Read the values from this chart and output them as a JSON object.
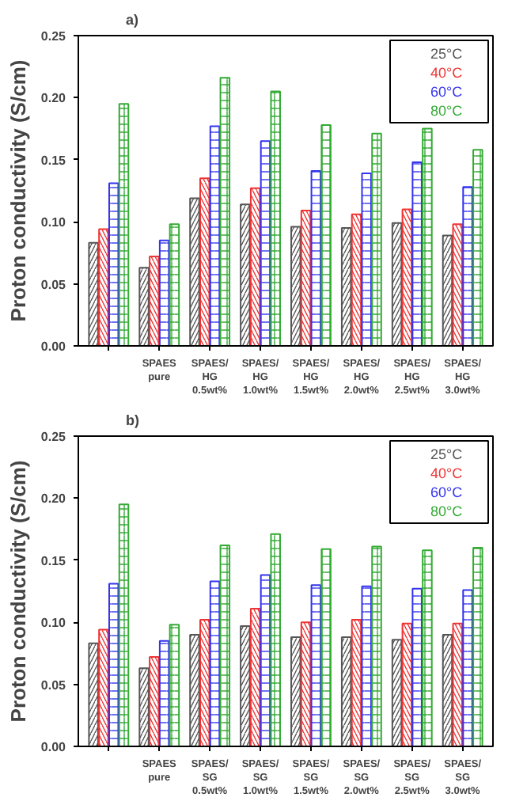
{
  "chart_data": [
    {
      "type": "bar",
      "title": "a)",
      "ylabel": "Proton conductivity (S/cm)",
      "categories": [
        null,
        "SPAES\npure",
        "SPAES/\nHG\n0.5wt%",
        "SPAES/\nHG\n1.0wt%",
        "SPAES/\nHG\n1.5wt%",
        "SPAES/\nHG\n2.0wt%",
        "SPAES/\nHG\n2.5wt%",
        "SPAES/\nHG\n3.0wt%"
      ],
      "ylim": [
        0,
        0.25
      ],
      "yticks": [
        {
          "value": 0,
          "label": "0.00"
        },
        {
          "value": 0.05,
          "label": "0.05"
        },
        {
          "value": 0.1,
          "label": "0.10"
        },
        {
          "value": 0.15,
          "label": "0.15"
        },
        {
          "value": 0.2,
          "label": "0.20"
        },
        {
          "value": 0.25,
          "label": "0.25"
        }
      ],
      "legend": "top right",
      "grid": false,
      "series": [
        {
          "name": "25°C",
          "color": "#555555",
          "values": [
            0.083,
            0.063,
            0.119,
            0.114,
            0.096,
            0.095,
            0.099,
            0.089
          ]
        },
        {
          "name": "40°C",
          "color": "#ee3333",
          "values": [
            0.094,
            0.072,
            0.135,
            0.127,
            0.109,
            0.106,
            0.11,
            0.098
          ]
        },
        {
          "name": "60°C",
          "color": "#3333ee",
          "values": [
            0.131,
            0.085,
            0.177,
            0.165,
            0.141,
            0.139,
            0.148,
            0.128
          ]
        },
        {
          "name": "80°C",
          "color": "#33aa33",
          "values": [
            0.195,
            0.098,
            0.216,
            0.205,
            0.178,
            0.171,
            0.175,
            0.158
          ]
        }
      ]
    },
    {
      "type": "bar",
      "title": "b)",
      "ylabel": "Proton conductivity (S/cm)",
      "categories": [
        null,
        "SPAES\npure",
        "SPAES/\nSG\n0.5wt%",
        "SPAES/\nSG\n1.0wt%",
        "SPAES/\nSG\n1.5wt%",
        "SPAES/\nSG\n2.0wt%",
        "SPAES/\nSG\n2.5wt%",
        "SPAES/\nSG\n3.0wt%"
      ],
      "ylim": [
        0,
        0.25
      ],
      "yticks": [
        {
          "value": 0,
          "label": "0.00"
        },
        {
          "value": 0.05,
          "label": "0.05"
        },
        {
          "value": 0.1,
          "label": "0.10"
        },
        {
          "value": 0.15,
          "label": "0.15"
        },
        {
          "value": 0.2,
          "label": "0.20"
        },
        {
          "value": 0.25,
          "label": "0.25"
        }
      ],
      "legend": "top right",
      "grid": false,
      "series": [
        {
          "name": "25°C",
          "color": "#555555",
          "values": [
            0.083,
            0.063,
            0.09,
            0.097,
            0.088,
            0.088,
            0.086,
            0.09
          ]
        },
        {
          "name": "40°C",
          "color": "#ee3333",
          "values": [
            0.094,
            0.072,
            0.102,
            0.111,
            0.1,
            0.102,
            0.099,
            0.099
          ]
        },
        {
          "name": "60°C",
          "color": "#3333ee",
          "values": [
            0.131,
            0.085,
            0.133,
            0.138,
            0.13,
            0.129,
            0.127,
            0.126
          ]
        },
        {
          "name": "80°C",
          "color": "#33aa33",
          "values": [
            0.195,
            0.098,
            0.162,
            0.171,
            0.159,
            0.161,
            0.158,
            0.16
          ]
        }
      ]
    }
  ]
}
